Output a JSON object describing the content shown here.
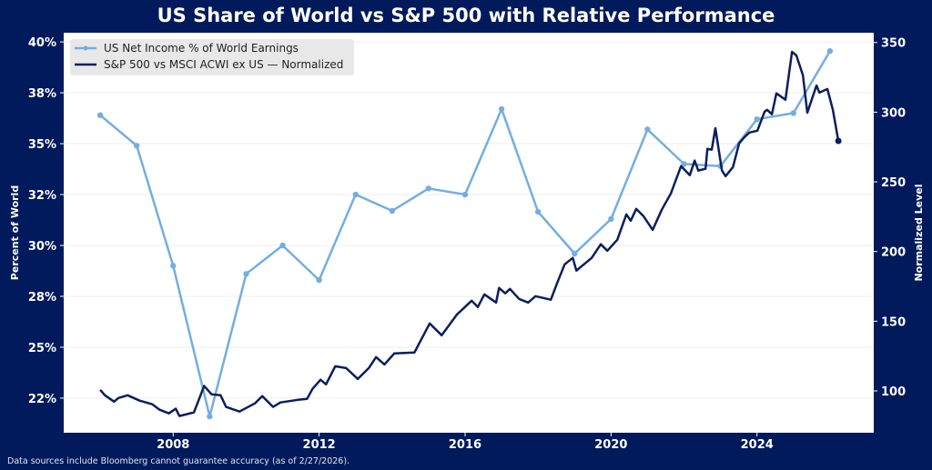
{
  "chart_data": {
    "type": "line",
    "title": "US Share of World vs S&P 500 with Relative Performance",
    "ylabel_left": "Percent of World",
    "ylabel_right": "Normalized Level",
    "xlim": [
      2005.0,
      2027.2
    ],
    "ylim_left": [
      20.8,
      40.45
    ],
    "ylim_right": [
      70,
      357
    ],
    "x_ticks": [
      2008,
      2012,
      2016,
      2020,
      2024
    ],
    "y_ticks_left": [
      {
        "value": 22.5,
        "label": "22%"
      },
      {
        "value": 25,
        "label": "25%"
      },
      {
        "value": 27.5,
        "label": "28%"
      },
      {
        "value": 30,
        "label": "30%"
      },
      {
        "value": 32.5,
        "label": "32%"
      },
      {
        "value": 35,
        "label": "35%"
      },
      {
        "value": 37.5,
        "label": "38%"
      },
      {
        "value": 40,
        "label": "40%"
      }
    ],
    "y_ticks_right": [
      100,
      150,
      200,
      250,
      300,
      350
    ],
    "grid": "horizontal (left axis)",
    "legend_position": "top-left",
    "series": [
      {
        "name": "US Net Income % of World Earnings",
        "axis": "left",
        "color": "#74aee0",
        "markers": true,
        "x": [
          2006,
          2007,
          2008,
          2009,
          2010,
          2011,
          2012,
          2013,
          2014,
          2015,
          2016,
          2017,
          2018,
          2019,
          2020,
          2021,
          2022,
          2023,
          2024,
          2025,
          2026
        ],
        "y": [
          36.4,
          34.9,
          29.0,
          21.6,
          28.6,
          30.0,
          28.3,
          32.5,
          31.7,
          32.8,
          32.5,
          36.7,
          31.65,
          29.6,
          31.3,
          35.7,
          34.0,
          33.9,
          36.2,
          36.5,
          39.55
        ]
      },
      {
        "name": "S&P 500 vs MSCI ACWI ex US — Normalized",
        "axis": "right",
        "color": "#0b1f5c",
        "markers": false,
        "x": [
          2006.0,
          2006.13,
          2006.38,
          2006.5,
          2006.75,
          2007.08,
          2007.43,
          2007.63,
          2007.88,
          2008.07,
          2008.17,
          2008.57,
          2008.85,
          2009.05,
          2009.3,
          2009.45,
          2009.82,
          2010.24,
          2010.44,
          2010.74,
          2010.94,
          2011.42,
          2011.67,
          2011.82,
          2012.04,
          2012.19,
          2012.44,
          2012.74,
          2013.06,
          2013.36,
          2013.56,
          2013.79,
          2014.06,
          2014.61,
          2015.03,
          2015.36,
          2015.78,
          2016.18,
          2016.35,
          2016.53,
          2016.85,
          2016.93,
          2017.1,
          2017.23,
          2017.48,
          2017.73,
          2017.93,
          2018.35,
          2018.53,
          2018.73,
          2018.95,
          2019.05,
          2019.47,
          2019.72,
          2019.9,
          2020.17,
          2020.42,
          2020.54,
          2020.69,
          2020.89,
          2021.14,
          2021.39,
          2021.64,
          2021.92,
          2022.16,
          2022.29,
          2022.39,
          2022.59,
          2022.64,
          2022.76,
          2022.86,
          2023.04,
          2023.14,
          2023.34,
          2023.51,
          2023.66,
          2023.79,
          2024.01,
          2024.21,
          2024.28,
          2024.41,
          2024.53,
          2024.78,
          2024.96,
          2025.08,
          2025.26,
          2025.38,
          2025.63,
          2025.71,
          2025.93,
          2026.08,
          2026.23
        ],
        "y": [
          100.8,
          96.9,
          92.3,
          94.9,
          96.9,
          93.0,
          90.4,
          86.5,
          83.9,
          87.2,
          82.0,
          84.6,
          103.5,
          97.6,
          96.9,
          88.5,
          85.2,
          91.1,
          96.3,
          88.5,
          91.7,
          93.6,
          94.3,
          101.5,
          108.0,
          104.7,
          117.7,
          116.4,
          108.6,
          116.4,
          124.3,
          119.0,
          126.9,
          127.5,
          148.4,
          139.9,
          154.9,
          164.7,
          160.2,
          169.3,
          163.4,
          173.9,
          170.0,
          173.2,
          166.0,
          163.4,
          168.0,
          165.4,
          177.8,
          190.8,
          195.4,
          186.3,
          195.4,
          205.2,
          200.6,
          208.4,
          226.7,
          222.1,
          230.6,
          225.4,
          215.6,
          230.0,
          241.7,
          261.3,
          254.8,
          265.2,
          258.1,
          259.4,
          273.7,
          273.1,
          288.5,
          258.1,
          254.1,
          260.6,
          277.6,
          282.2,
          285.4,
          286.7,
          300.4,
          301.7,
          298.5,
          313.5,
          308.9,
          343.3,
          340.7,
          326.4,
          299.6,
          319.2,
          314.0,
          316.6,
          301.6,
          279.4
        ]
      }
    ]
  },
  "footnote": "Data sources include Bloomberg cannot guarantee accuracy (as of 2/27/2026).",
  "colors": {
    "background": "#011a5b",
    "plot_bg": "#ffffff",
    "grid": "#ececec",
    "legend_bg": "#e8e8e8"
  }
}
